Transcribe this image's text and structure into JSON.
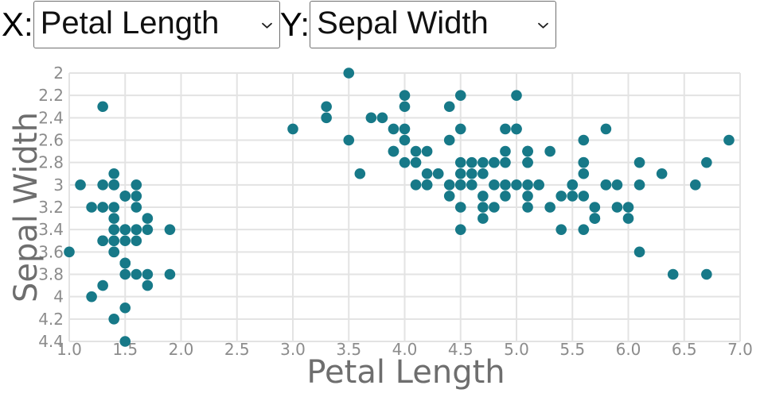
{
  "controls": {
    "x_label": "X:",
    "x_select": {
      "value": "Petal Length"
    },
    "y_label": "Y:",
    "y_select": {
      "value": "Sepal Width"
    }
  },
  "colors": {
    "marker": "#177988",
    "grid": "#e3e3e3",
    "tick_text": "#8c8c8c",
    "axis_title": "#6e6e6e"
  },
  "chart_data": {
    "type": "scatter",
    "title": "",
    "xlabel": "Petal Length",
    "ylabel": "Sepal Width",
    "xlim": [
      1.0,
      7.0
    ],
    "ylim": [
      2.0,
      4.4
    ],
    "y_axis_reversed": true,
    "grid": true,
    "legend": false,
    "x_ticks": [
      1.0,
      1.5,
      2.0,
      2.5,
      3.0,
      3.5,
      4.0,
      4.5,
      5.0,
      5.5,
      6.0,
      6.5,
      7.0
    ],
    "x_tick_labels": [
      "1.0",
      "1.5",
      "2.0",
      "2.5",
      "3.0",
      "3.5",
      "4.0",
      "4.5",
      "5.0",
      "5.5",
      "6.0",
      "6.5",
      "7.0"
    ],
    "y_ticks": [
      2.0,
      2.2,
      2.4,
      2.6,
      2.8,
      3.0,
      3.2,
      3.4,
      3.6,
      3.8,
      4.0,
      4.2,
      4.4
    ],
    "y_tick_labels": [
      "2",
      "2.2",
      "2.4",
      "2.6",
      "2.8",
      "3",
      "3.2",
      "3.4",
      "3.6",
      "3.8",
      "4",
      "4.2",
      "4.4"
    ],
    "marker_color": "#177988",
    "points": [
      [
        1.4,
        3.5
      ],
      [
        1.4,
        3.0
      ],
      [
        1.3,
        3.2
      ],
      [
        1.5,
        3.1
      ],
      [
        1.4,
        3.6
      ],
      [
        1.7,
        3.9
      ],
      [
        1.4,
        3.4
      ],
      [
        1.5,
        3.4
      ],
      [
        1.4,
        2.9
      ],
      [
        1.5,
        3.1
      ],
      [
        1.5,
        3.7
      ],
      [
        1.6,
        3.4
      ],
      [
        1.4,
        3.0
      ],
      [
        1.1,
        3.0
      ],
      [
        1.2,
        4.0
      ],
      [
        1.5,
        4.4
      ],
      [
        1.3,
        3.9
      ],
      [
        1.4,
        3.5
      ],
      [
        1.7,
        3.8
      ],
      [
        1.5,
        3.8
      ],
      [
        1.7,
        3.4
      ],
      [
        1.5,
        3.7
      ],
      [
        1.0,
        3.6
      ],
      [
        1.7,
        3.3
      ],
      [
        1.9,
        3.4
      ],
      [
        1.6,
        3.0
      ],
      [
        1.6,
        3.4
      ],
      [
        1.5,
        3.5
      ],
      [
        1.4,
        3.4
      ],
      [
        1.6,
        3.2
      ],
      [
        1.6,
        3.1
      ],
      [
        1.5,
        3.4
      ],
      [
        1.5,
        4.1
      ],
      [
        1.4,
        4.2
      ],
      [
        1.5,
        3.1
      ],
      [
        1.2,
        3.2
      ],
      [
        1.3,
        3.5
      ],
      [
        1.4,
        3.6
      ],
      [
        1.3,
        3.0
      ],
      [
        1.5,
        3.4
      ],
      [
        1.3,
        3.5
      ],
      [
        1.3,
        2.3
      ],
      [
        1.3,
        3.2
      ],
      [
        1.6,
        3.5
      ],
      [
        1.9,
        3.8
      ],
      [
        1.4,
        3.0
      ],
      [
        1.6,
        3.8
      ],
      [
        1.4,
        3.2
      ],
      [
        1.5,
        3.7
      ],
      [
        1.4,
        3.3
      ],
      [
        4.7,
        3.2
      ],
      [
        4.5,
        3.2
      ],
      [
        4.9,
        3.1
      ],
      [
        4.0,
        2.3
      ],
      [
        4.6,
        2.8
      ],
      [
        4.5,
        2.8
      ],
      [
        4.7,
        3.3
      ],
      [
        3.3,
        2.4
      ],
      [
        4.6,
        2.9
      ],
      [
        3.9,
        2.7
      ],
      [
        3.5,
        2.0
      ],
      [
        4.2,
        3.0
      ],
      [
        4.0,
        2.2
      ],
      [
        4.7,
        2.9
      ],
      [
        3.6,
        2.9
      ],
      [
        4.4,
        3.1
      ],
      [
        4.5,
        3.0
      ],
      [
        4.1,
        2.7
      ],
      [
        4.5,
        2.2
      ],
      [
        3.9,
        2.5
      ],
      [
        4.8,
        3.2
      ],
      [
        4.0,
        2.8
      ],
      [
        4.9,
        2.5
      ],
      [
        4.7,
        2.8
      ],
      [
        4.3,
        2.9
      ],
      [
        4.4,
        3.0
      ],
      [
        4.8,
        2.8
      ],
      [
        5.0,
        3.0
      ],
      [
        4.5,
        2.9
      ],
      [
        3.5,
        2.6
      ],
      [
        3.8,
        2.4
      ],
      [
        3.7,
        2.4
      ],
      [
        3.9,
        2.7
      ],
      [
        5.1,
        2.7
      ],
      [
        4.5,
        3.0
      ],
      [
        4.5,
        3.4
      ],
      [
        4.7,
        3.1
      ],
      [
        4.4,
        2.3
      ],
      [
        4.1,
        3.0
      ],
      [
        4.0,
        2.5
      ],
      [
        4.4,
        2.6
      ],
      [
        4.6,
        3.0
      ],
      [
        4.0,
        2.6
      ],
      [
        3.3,
        2.3
      ],
      [
        4.2,
        2.7
      ],
      [
        4.2,
        3.0
      ],
      [
        4.2,
        2.9
      ],
      [
        4.3,
        2.9
      ],
      [
        3.0,
        2.5
      ],
      [
        4.1,
        2.8
      ],
      [
        6.0,
        3.3
      ],
      [
        5.1,
        2.7
      ],
      [
        5.9,
        3.0
      ],
      [
        5.6,
        2.9
      ],
      [
        5.8,
        3.0
      ],
      [
        6.6,
        3.0
      ],
      [
        4.5,
        2.5
      ],
      [
        6.3,
        2.9
      ],
      [
        5.8,
        2.5
      ],
      [
        6.1,
        3.6
      ],
      [
        5.1,
        3.2
      ],
      [
        5.3,
        2.7
      ],
      [
        5.5,
        3.0
      ],
      [
        5.0,
        2.5
      ],
      [
        5.1,
        2.8
      ],
      [
        5.3,
        3.2
      ],
      [
        5.5,
        3.0
      ],
      [
        6.7,
        3.8
      ],
      [
        6.9,
        2.6
      ],
      [
        5.0,
        2.2
      ],
      [
        5.7,
        3.2
      ],
      [
        4.9,
        2.8
      ],
      [
        6.7,
        2.8
      ],
      [
        4.9,
        2.7
      ],
      [
        5.7,
        3.3
      ],
      [
        6.0,
        3.2
      ],
      [
        4.8,
        2.8
      ],
      [
        4.9,
        3.0
      ],
      [
        5.6,
        2.8
      ],
      [
        5.8,
        3.0
      ],
      [
        6.1,
        2.8
      ],
      [
        6.4,
        3.8
      ],
      [
        5.6,
        2.8
      ],
      [
        5.1,
        2.8
      ],
      [
        5.6,
        2.6
      ],
      [
        6.1,
        3.0
      ],
      [
        5.6,
        3.4
      ],
      [
        5.5,
        3.1
      ],
      [
        4.8,
        3.0
      ],
      [
        5.4,
        3.1
      ],
      [
        5.6,
        3.1
      ],
      [
        5.1,
        3.1
      ],
      [
        5.1,
        2.7
      ],
      [
        5.9,
        3.2
      ],
      [
        5.7,
        3.3
      ],
      [
        5.2,
        3.0
      ],
      [
        5.0,
        2.5
      ],
      [
        5.2,
        3.0
      ],
      [
        5.4,
        3.4
      ],
      [
        5.1,
        3.0
      ]
    ]
  }
}
